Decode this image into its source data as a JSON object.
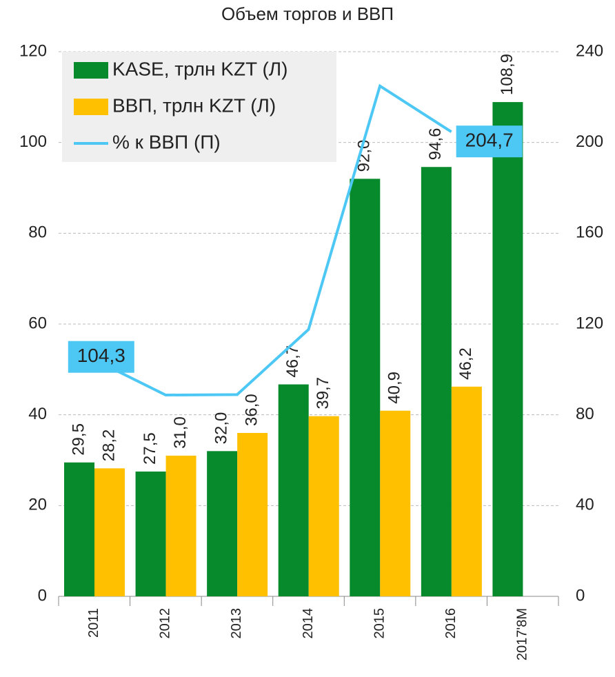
{
  "chart_data": {
    "type": "bar",
    "title": "Объем торгов и ВВП",
    "categories": [
      "2011",
      "2012",
      "2013",
      "2014",
      "2015",
      "2016",
      "2017'8M"
    ],
    "series": [
      {
        "name": "KASE, трлн KZT (Л)",
        "type": "bar",
        "color": "#078a2b",
        "label_color": "#078a2b",
        "values": [
          29.5,
          27.5,
          32.0,
          46.7,
          92.0,
          94.6,
          108.9
        ],
        "value_labels": [
          "29,5",
          "27,5",
          "32,0",
          "46,7",
          "92,0",
          "94,6",
          "108,9"
        ]
      },
      {
        "name": "ВВП, трлн KZT (Л)",
        "type": "bar",
        "color": "#ffc000",
        "label_color": "#ed7d31",
        "values": [
          28.2,
          31.0,
          36.0,
          39.7,
          40.9,
          46.2,
          null
        ],
        "value_labels": [
          "28,2",
          "31,0",
          "36,0",
          "39,7",
          "40,9",
          "46,2",
          null
        ]
      },
      {
        "name": "% к ВВП (П)",
        "type": "line",
        "axis": "y2",
        "color": "#4dc8f5",
        "values": [
          104.3,
          88.7,
          88.9,
          117.6,
          224.9,
          204.7,
          null
        ],
        "value_labels": [
          "104,3",
          null,
          null,
          null,
          null,
          "204,7",
          null
        ]
      }
    ],
    "ylim": [
      0,
      120
    ],
    "yticks": [
      0,
      20,
      40,
      60,
      80,
      100,
      120
    ],
    "y2lim": [
      0,
      240
    ],
    "y2ticks": [
      0,
      40,
      80,
      120,
      160,
      200,
      240
    ],
    "grid": true,
    "legend": "top-left"
  }
}
